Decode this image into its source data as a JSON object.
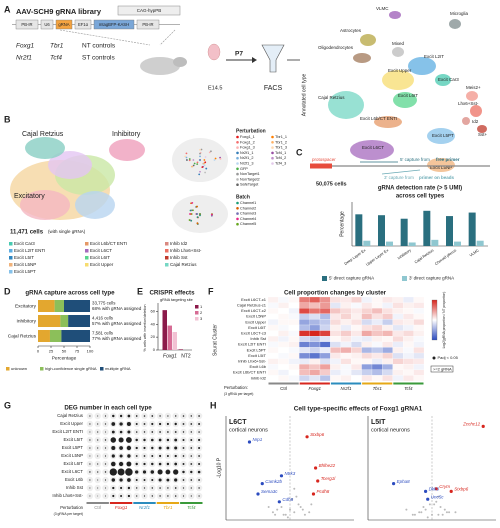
{
  "panel_labels": [
    "A",
    "B",
    "C",
    "D",
    "E",
    "F",
    "G",
    "H"
  ],
  "a": {
    "title": "AAV-SCH9 gRNA library",
    "promoter": "CAG-hypPB",
    "construct": [
      "PB-IR",
      "U6",
      "gRNA",
      "EF1α",
      "mtagBFP-KASH",
      "PB-IR"
    ],
    "targets": [
      [
        "Foxg1",
        "Tbr1",
        "NT controls"
      ],
      [
        "Nr2f1",
        "Tcf4",
        "ST controls"
      ]
    ],
    "stage": "E14.5",
    "harvest": "P7",
    "sort": "FACS",
    "umap": {
      "axis_label": "Annotated cell type",
      "count": "50,075 cells",
      "clusters": [
        "VLMC",
        "Microglia",
        "Astrocytes",
        "Oligodendrocytes",
        "Mixed",
        "Excit L2IT",
        "Excit Car3",
        "Excit Upper",
        "Excit L6IT",
        "Meis2+",
        "Lhx6+Sst-",
        "Id2",
        "Sst+",
        "Cajal Retzius",
        "Excit L6b/CT ENTI",
        "Excit L5PT",
        "Excit L6CT",
        "Excit L5NP"
      ]
    }
  },
  "b": {
    "groups": [
      "Cajal Retzius",
      "Inhibitory",
      "Excitatory"
    ],
    "count": "11,471 cells",
    "count_note": "(with single gRNA)",
    "perturbation_title": "Perturbation",
    "perturbations": [
      "Foxg1_1",
      "Foxg1_2",
      "Foxg1_3",
      "Nr2f1_1",
      "Nr2f1_2",
      "Nr2f1_3",
      "GFP",
      "NonTarget1",
      "NonTarget2",
      "SafeTarget",
      "Tbr1_1",
      "Tbr1_2",
      "Tbr1_3",
      "Tcf4_1",
      "Tcf4_2",
      "Tcf4_3"
    ],
    "batch_title": "Batch",
    "batches": [
      "Channel1",
      "Channel2",
      "Channel3",
      "Channel4",
      "Channel5"
    ],
    "cell_types": [
      "Excit Car3",
      "Excit L2IT ENTI",
      "Excit L5IT",
      "Excit L5NP",
      "Excit L5PT",
      "Excit L6b/CT ENTI",
      "Excit L6CT",
      "Excit L6IT",
      "Excit Upper",
      "Inhib Id2",
      "Inhib Lhx6+Sst-",
      "Inhib Sst",
      "Cajal Retzius"
    ]
  },
  "c": {
    "diagram": {
      "protospacer": "protospacer",
      "five_prime": "5' capture from",
      "five_prime_bold": "free primer",
      "three_prime": "3' capture from",
      "three_prime_bold": "primer on beads"
    },
    "chart": {
      "type": "bar",
      "title": "gRNA detection rate (> 5 UMI)",
      "subtitle": "across cell types",
      "y_label": "Percentage",
      "categories": [
        "Deep Layer Ex",
        "Upper Layer Ex",
        "Inhibitory",
        "Cajal Retzius",
        "Choroid plexus",
        "VLMC"
      ],
      "series": [
        {
          "name": "5' direct capture gRNA",
          "color": "#2a6f7f",
          "values": [
            72,
            70,
            62,
            80,
            68,
            76
          ]
        },
        {
          "name": "3' direct capture gRNA",
          "color": "#8fc7d0",
          "values": [
            12,
            10,
            8,
            14,
            10,
            12
          ]
        }
      ],
      "ylim": [
        0,
        100
      ]
    }
  },
  "d": {
    "type": "bar",
    "orientation": "horizontal",
    "stacked": true,
    "title": "gRNA capture across cell type",
    "categories": [
      "Excitatory",
      "Inhibitory",
      "Cajal Retzius"
    ],
    "series": [
      {
        "name": "unknown",
        "color": "#e3a72f",
        "values": [
          32,
          43,
          23
        ]
      },
      {
        "name": "high-confidence single gRNA",
        "color": "#8cbf5a",
        "values": [
          18,
          15,
          22
        ]
      },
      {
        "name": "multiple gRNA",
        "color": "#1f4e79",
        "values": [
          50,
          42,
          55
        ]
      }
    ],
    "annotations": [
      [
        "33,775 cells",
        "68% with gRNA assigned"
      ],
      [
        "4,416 cells",
        "57% with gRNA assigned"
      ],
      [
        "7,581 cells",
        "77% with gRNA assigned"
      ]
    ],
    "x_label": "Percentage",
    "xlim": [
      0,
      100
    ],
    "xticks": [
      0,
      25,
      50,
      75,
      100
    ]
  },
  "e": {
    "type": "bar",
    "title": "CRISPR effects",
    "y_label": "% cells with insertion/deletion",
    "legend_title": "gRNA targeting site",
    "categories": [
      "Foxg1",
      "NT2"
    ],
    "series": [
      {
        "name": "1",
        "color": "#8b1a4a",
        "values": [
          62,
          1
        ]
      },
      {
        "name": "2",
        "color": "#d66b94",
        "values": [
          38,
          null
        ]
      },
      {
        "name": "3",
        "color": "#f2c1d3",
        "values": [
          28,
          null
        ]
      }
    ],
    "ylim": [
      0,
      70
    ],
    "yticks": [
      0,
      20,
      40,
      60
    ]
  },
  "f": {
    "type": "heatmap",
    "title": "Cell proportion changes by cluster",
    "y_label": "Seurat Cluster",
    "rows": [
      "Excit L6CT-c1",
      "Cajal Retzius-c1",
      "Excit L6CT-c2",
      "Excit L5NP",
      "Excit Upper",
      "Excit L6IT",
      "Excit L6CT-c3",
      "Inhib Sst",
      "Excit L2IT ENTI",
      "Excit L5PT",
      "Excit L5IT",
      "Inhib Lhx6+Sst-",
      "Excit L6b",
      "Excit L6b/CT ENTI",
      "Inhib Id2"
    ],
    "groups": [
      "Ctrl",
      "Foxg1",
      "Nr2f1",
      "Tbr1",
      "Tcf4"
    ],
    "x_label": "Perturbation:",
    "x_note": "(3 gRNA per target)",
    "values": [
      [
        0.2,
        -0.1,
        0.1,
        1.8,
        2.2,
        1.5,
        0.4,
        0.3,
        0.6,
        -0.2,
        0.1,
        0.3,
        0.2,
        -0.3,
        0.1
      ],
      [
        -0.1,
        0.2,
        0,
        1.2,
        0.9,
        1.4,
        -0.4,
        0.2,
        -0.1,
        0.3,
        0.1,
        -0.2,
        0.4,
        0.2,
        0.3
      ],
      [
        0.1,
        0,
        -0.2,
        2.5,
        1.9,
        2.1,
        0.8,
        0.5,
        0.3,
        0.6,
        0.9,
        0.4,
        0.2,
        0.1,
        -0.1
      ],
      [
        0,
        0.1,
        -0.1,
        -0.8,
        -0.5,
        -1.1,
        0.3,
        0.6,
        0.2,
        0.9,
        0.4,
        0.7,
        -0.2,
        0.3,
        0.1
      ],
      [
        -0.2,
        0.1,
        0.1,
        -1.5,
        -1.2,
        -0.9,
        0.5,
        0.2,
        0.4,
        -0.6,
        -0.3,
        -0.8,
        0.3,
        0.2,
        0.5
      ],
      [
        0.1,
        -0.1,
        0,
        -1.1,
        -1.6,
        -0.7,
        0.2,
        -0.3,
        0.1,
        0.4,
        0.6,
        0.2,
        -0.4,
        -0.2,
        0.1
      ],
      [
        0,
        0.2,
        -0.1,
        2.8,
        3,
        2.6,
        0.4,
        0.7,
        0.3,
        1.2,
        0.8,
        1,
        0.3,
        0.5,
        0.2
      ],
      [
        0.2,
        -0.2,
        0.1,
        -0.6,
        -0.9,
        -0.4,
        0.1,
        0.3,
        -0.2,
        -0.3,
        0.2,
        0.1,
        0.5,
        0.2,
        -0.1
      ],
      [
        -0.1,
        0.1,
        0.2,
        -2.1,
        -1.8,
        -2.4,
        -0.5,
        -0.2,
        -0.6,
        0.2,
        -0.1,
        0.3,
        -0.3,
        0.1,
        -0.2
      ],
      [
        0.1,
        0,
        -0.1,
        -0.4,
        -0.7,
        -0.3,
        0.9,
        1.1,
        0.6,
        -1.2,
        -0.9,
        -1.4,
        0.2,
        -0.1,
        0.4
      ],
      [
        0,
        -0.1,
        0.1,
        -1.9,
        -2.3,
        -1.6,
        0.3,
        0.1,
        0.2,
        0.5,
        0.3,
        0.6,
        -0.5,
        -0.2,
        -0.4
      ],
      [
        0.2,
        0.1,
        -0.2,
        -0.3,
        0.2,
        -0.5,
        -0.2,
        0.4,
        0.1,
        0.1,
        -0.3,
        0.2,
        0.6,
        0.4,
        0.3
      ],
      [
        -0.1,
        0,
        0.1,
        1.1,
        0.8,
        1.3,
        0.2,
        -0.1,
        0.3,
        -1.6,
        -2,
        -1.3,
        0.1,
        0.2,
        -0.2
      ],
      [
        0.1,
        -0.2,
        0,
        0.9,
        1.2,
        0.7,
        -0.3,
        -0.1,
        -0.4,
        -0.8,
        -1.1,
        -0.6,
        0.2,
        0.1,
        0.3
      ],
      [
        0,
        0.1,
        -0.1,
        -0.7,
        -0.4,
        -1,
        0.1,
        0.2,
        0,
        0.3,
        0.1,
        0.4,
        -0.2,
        0.3,
        0.1
      ]
    ],
    "clim": [
      -3,
      3
    ],
    "legend_title": "Log2(gRNA proportion / NT proportion)",
    "sig_label": "Padj < 0.05",
    "multi_label": ">=2 gRNA"
  },
  "g": {
    "type": "dot",
    "title": "DEG number in each cell type",
    "rows": [
      "Cajal Retzius",
      "Excit Upper",
      "Excit L2IT ENTI",
      "Excit L5IT",
      "Excit L5PT",
      "Excit L5NP",
      "Excit L6IT",
      "Excit L6CT",
      "Excit L6b",
      "Inhib Sst",
      "Inhib Lhx6+Sst-"
    ],
    "groups": [
      "Ctrl",
      "Foxg1",
      "Nr2f1",
      "Tbr1",
      "Tcf4"
    ],
    "x_label": "Perturbation",
    "x_note": "(3 gRNA per target)",
    "values": [
      [
        2,
        1,
        3,
        40,
        35,
        50,
        10,
        8,
        12,
        5,
        4,
        6,
        8,
        6,
        10
      ],
      [
        3,
        2,
        4,
        120,
        90,
        150,
        20,
        15,
        25,
        30,
        25,
        35,
        15,
        12,
        18
      ],
      [
        1,
        2,
        1,
        60,
        45,
        70,
        8,
        6,
        10,
        12,
        10,
        15,
        6,
        5,
        8
      ],
      [
        4,
        3,
        5,
        300,
        250,
        350,
        40,
        35,
        45,
        50,
        40,
        60,
        20,
        18,
        25
      ],
      [
        2,
        2,
        3,
        150,
        120,
        180,
        30,
        25,
        35,
        60,
        55,
        70,
        15,
        12,
        20
      ],
      [
        1,
        1,
        2,
        80,
        70,
        95,
        15,
        12,
        18,
        25,
        20,
        30,
        10,
        8,
        12
      ],
      [
        3,
        2,
        4,
        200,
        170,
        230,
        35,
        30,
        40,
        45,
        40,
        50,
        18,
        15,
        22
      ],
      [
        5,
        4,
        6,
        600,
        550,
        650,
        90,
        80,
        100,
        250,
        220,
        280,
        40,
        35,
        45
      ],
      [
        2,
        1,
        2,
        100,
        85,
        120,
        20,
        18,
        22,
        70,
        60,
        80,
        12,
        10,
        14
      ],
      [
        1,
        1,
        1,
        30,
        25,
        35,
        5,
        4,
        6,
        8,
        6,
        10,
        4,
        3,
        5
      ],
      [
        1,
        0,
        1,
        25,
        20,
        30,
        4,
        3,
        5,
        6,
        5,
        7,
        3,
        2,
        4
      ]
    ]
  },
  "h": {
    "title": "Cell type-specific effects of Foxg1 gRNA1",
    "y_label": "-Log10 P",
    "plots": [
      {
        "type": "scatter",
        "title": "L6CT",
        "subtitle": "cortical neurons",
        "xlim": [
          -3,
          3
        ],
        "ylim": [
          0,
          40
        ],
        "genes": [
          {
            "name": "Nrp1",
            "x": -1.9,
            "y": 30
          },
          {
            "name": "Stxbp6",
            "x": 0.8,
            "y": 32
          },
          {
            "name": "Bhlhe22",
            "x": 1.2,
            "y": 20
          },
          {
            "name": "Ntrk3",
            "x": -0.4,
            "y": 17
          },
          {
            "name": "Tcerg1l",
            "x": 1.3,
            "y": 15
          },
          {
            "name": "Camk2b",
            "x": -1.3,
            "y": 14
          },
          {
            "name": "Sema3c",
            "x": -1.5,
            "y": 10
          },
          {
            "name": "Pcdh8",
            "x": 1.1,
            "y": 10
          },
          {
            "name": "Cdh8",
            "x": -0.5,
            "y": 7
          }
        ],
        "background": {
          "x": [
            -0.3,
            0.2,
            -0.6,
            0.5,
            -0.1,
            0.4,
            -0.8,
            0.7,
            0.1,
            -0.4,
            0.3,
            -0.2,
            0.6,
            -0.5,
            0.9,
            -1.0,
            0.2,
            -0.7,
            1.0,
            0.0
          ],
          "y": [
            2,
            3,
            4,
            5,
            1,
            6,
            3,
            2,
            8,
            5,
            9,
            2,
            4,
            7,
            3,
            5,
            12,
            2,
            6,
            4
          ]
        }
      },
      {
        "type": "scatter",
        "title": "L5IT",
        "subtitle": "cortical neurons",
        "xlim": [
          -3,
          3
        ],
        "ylim": [
          0,
          40
        ],
        "genes": [
          {
            "name": "Zcchc12",
            "x": 2.4,
            "y": 36
          },
          {
            "name": "Epha8",
            "x": -1.8,
            "y": 14
          },
          {
            "name": "Crym",
            "x": 0.2,
            "y": 12
          },
          {
            "name": "Dkk3",
            "x": -0.3,
            "y": 11
          },
          {
            "name": "Stxbp6",
            "x": 0.9,
            "y": 11
          },
          {
            "name": "Unc5c",
            "x": -0.2,
            "y": 8
          }
        ],
        "background": {
          "x": [
            -0.2,
            0.3,
            -0.5,
            0.6,
            0.0,
            0.4,
            -0.9,
            0.8,
            0.1,
            -0.3,
            0.2,
            -0.6,
            0.5,
            -0.4,
            1.1,
            -1.2,
            0.3,
            -0.1,
            0.7,
            -0.8
          ],
          "y": [
            1,
            2,
            3,
            4,
            2,
            5,
            2,
            3,
            6,
            4,
            7,
            3,
            2,
            5,
            3,
            4,
            9,
            6,
            3,
            2
          ]
        }
      }
    ]
  }
}
